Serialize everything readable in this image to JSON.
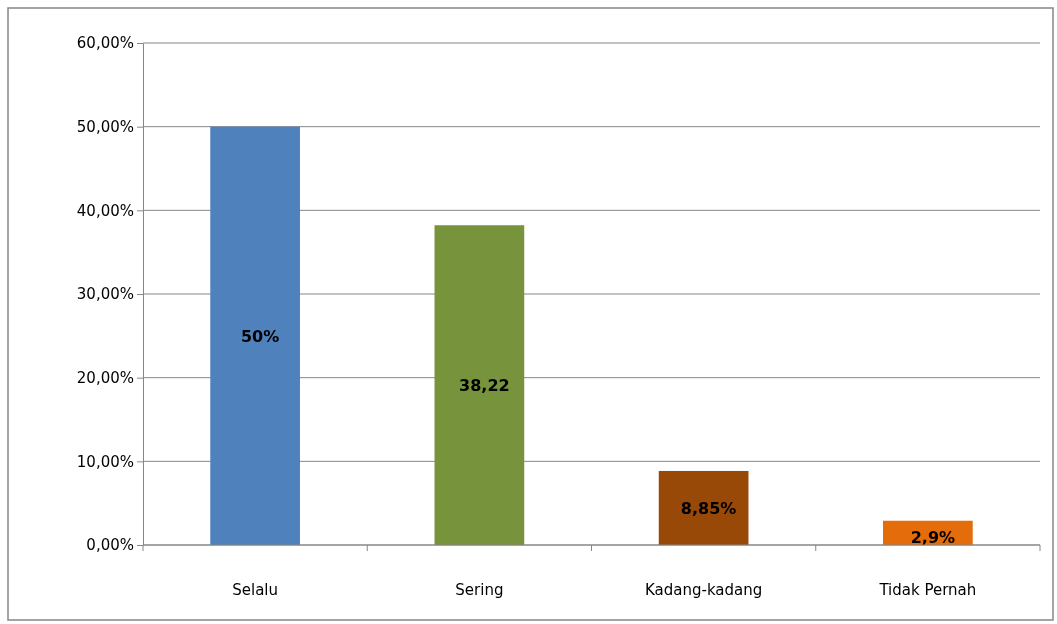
{
  "chart_data": {
    "type": "bar",
    "categories": [
      "Selalu",
      "Sering",
      "Kadang-kadang",
      "Tidak Pernah"
    ],
    "values": [
      50,
      38.22,
      8.85,
      2.9
    ],
    "colors": [
      "#4f81bd",
      "#77933c",
      "#984807",
      "#e46c0a"
    ],
    "value_labels": [
      "50%",
      "38,22",
      "8,85%",
      "2,9%"
    ],
    "ylim": [
      0,
      60
    ],
    "yticks": [
      {
        "value": 0,
        "label": "0,00%"
      },
      {
        "value": 10,
        "label": "10,00%"
      },
      {
        "value": 20,
        "label": "20,00%"
      },
      {
        "value": 30,
        "label": "30,00%"
      },
      {
        "value": 40,
        "label": "40,00%"
      },
      {
        "value": 50,
        "label": "50,00%"
      },
      {
        "value": 60,
        "label": "60,00%"
      }
    ],
    "grid": "y"
  }
}
